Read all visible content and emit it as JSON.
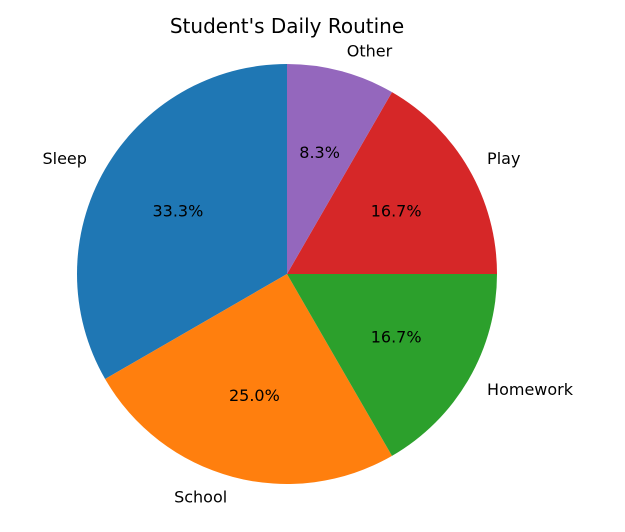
{
  "chart_data": {
    "type": "pie",
    "title": "Student's Daily Routine",
    "categories": [
      "Sleep",
      "School",
      "Homework",
      "Play",
      "Other"
    ],
    "values": [
      8,
      6,
      4,
      4,
      2
    ],
    "percent_labels": [
      "33.3%",
      "25.0%",
      "16.7%",
      "16.7%",
      "8.3%"
    ],
    "colors": [
      "#1f77b4",
      "#ff7f0e",
      "#2ca02c",
      "#d62728",
      "#9467bd"
    ],
    "start_angle_deg": 90,
    "direction": "counterclockwise",
    "legend": "none"
  }
}
